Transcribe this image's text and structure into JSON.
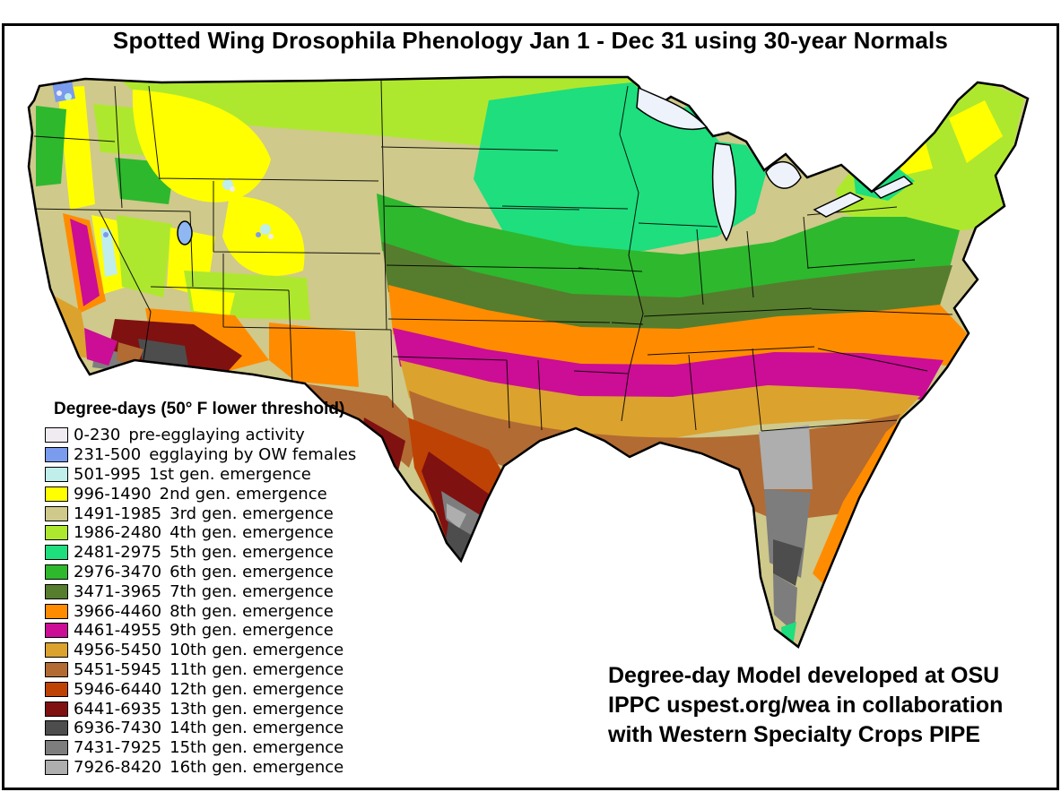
{
  "title": "Spotted Wing Drosophila Phenology Jan 1 - Dec 31 using 30-year Normals",
  "legend": {
    "title": "Degree-days (50° F lower threshold)",
    "entries": [
      {
        "range": "0-230",
        "label": "pre-egglaying activity",
        "color": "#f0ebf0"
      },
      {
        "range": "231-500",
        "label": "egglaying by OW females",
        "color": "#7a9bee"
      },
      {
        "range": "501-995",
        "label": "1st gen. emergence",
        "color": "#c0eeea"
      },
      {
        "range": "996-1490",
        "label": "2nd gen. emergence",
        "color": "#ffff00"
      },
      {
        "range": "1491-1985",
        "label": "3rd gen. emergence",
        "color": "#cfc98b"
      },
      {
        "range": "1986-2480",
        "label": "4th gen. emergence",
        "color": "#aee82e"
      },
      {
        "range": "2481-2975",
        "label": "5th gen. emergence",
        "color": "#1ede7e"
      },
      {
        "range": "2976-3470",
        "label": "6th gen. emergence",
        "color": "#2eb82e"
      },
      {
        "range": "3471-3965",
        "label": "7th gen. emergence",
        "color": "#567d2e"
      },
      {
        "range": "3966-4460",
        "label": "8th gen. emergence",
        "color": "#ff8c00"
      },
      {
        "range": "4461-4955",
        "label": "9th gen. emergence",
        "color": "#cc0d96"
      },
      {
        "range": "4956-5450",
        "label": "10th gen. emergence",
        "color": "#dba22e"
      },
      {
        "range": "5451-5945",
        "label": "11th gen. emergence",
        "color": "#b26b32"
      },
      {
        "range": "5946-6440",
        "label": "12th gen. emergence",
        "color": "#bf4205"
      },
      {
        "range": "6441-6935",
        "label": "13th gen. emergence",
        "color": "#801111"
      },
      {
        "range": "6936-7430",
        "label": "14th gen. emergence",
        "color": "#4d4d4d"
      },
      {
        "range": "7431-7925",
        "label": "15th gen. emergence",
        "color": "#7d7d7d"
      },
      {
        "range": "7926-8420",
        "label": "16th gen. emergence",
        "color": "#aeaeae"
      }
    ]
  },
  "attribution": {
    "line1": "Degree-day Model developed at OSU",
    "line2": "IPPC uspest.org/wea in collaboration",
    "line3": "with Western Specialty Crops PIPE"
  },
  "map": {
    "water_color": "#eef3fb",
    "salt_lake_color": "#8fb7f2",
    "outline_color": "#000000"
  }
}
